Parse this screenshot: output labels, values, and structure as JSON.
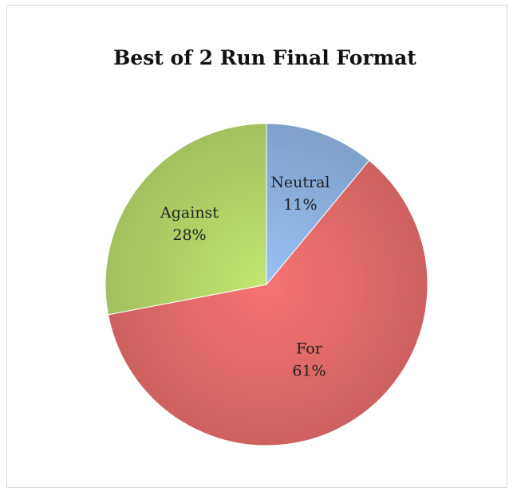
{
  "chart_data": {
    "type": "pie",
    "title": "Best of 2 Run Final Format",
    "slices": [
      {
        "label": "Neutral",
        "value": 11,
        "value_label": "11%",
        "color": "#8db3e2"
      },
      {
        "label": "For",
        "value": 61,
        "value_label": "61%",
        "color": "#e46c6a"
      },
      {
        "label": "Against",
        "value": 28,
        "value_label": "28%",
        "color": "#b5d56a"
      }
    ],
    "start_angle_deg": 0,
    "direction": "clockwise"
  }
}
